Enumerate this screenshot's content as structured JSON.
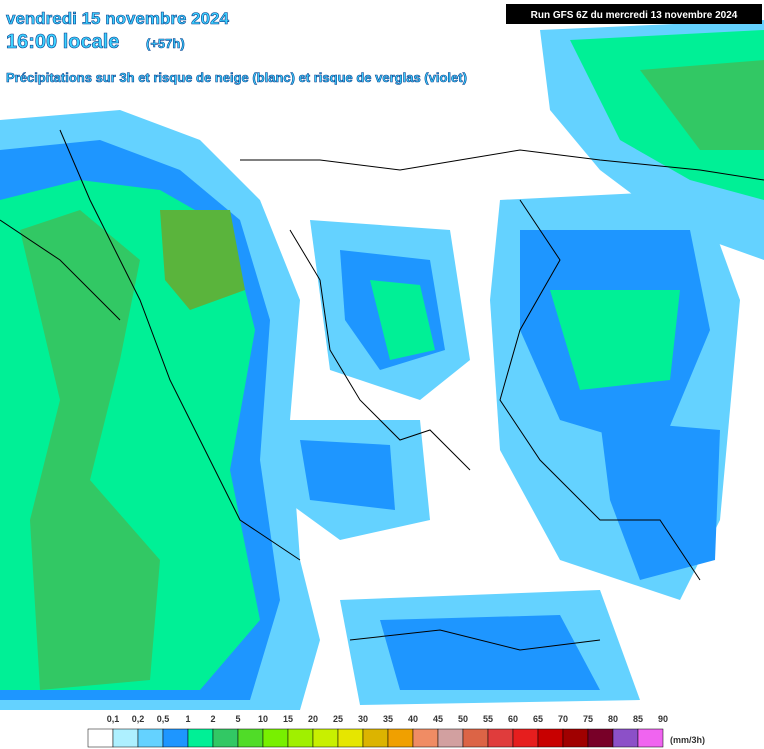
{
  "header": {
    "date": "vendredi 15 novembre 2024",
    "time": "16:00 locale",
    "offset": "(+57h)",
    "subtitle": "Précipitations sur 3h et risque de neige (blanc) et risque de verglas (violet)"
  },
  "run": "Run GFS 6Z du mercredi 13 novembre 2024",
  "legend": {
    "labels": [
      "0,1",
      "0,2",
      "0,5",
      "1",
      "2",
      "5",
      "10",
      "15",
      "20",
      "25",
      "30",
      "35",
      "40",
      "45",
      "50",
      "55",
      "60",
      "65",
      "70",
      "75",
      "80",
      "85",
      "90"
    ],
    "unit": "(mm/3h)",
    "colors": [
      "#ffffff",
      "#aef0ff",
      "#64d2ff",
      "#1e96ff",
      "#00f096",
      "#32c864",
      "#50dc28",
      "#78f000",
      "#a0f000",
      "#c8f000",
      "#e6e600",
      "#dcb400",
      "#f0a000",
      "#f08c64",
      "#d2a0a0",
      "#dc6446",
      "#e03c3c",
      "#e61e1e",
      "#c80000",
      "#a00000",
      "#780028",
      "#8c50c8",
      "#f064f0"
    ]
  }
}
